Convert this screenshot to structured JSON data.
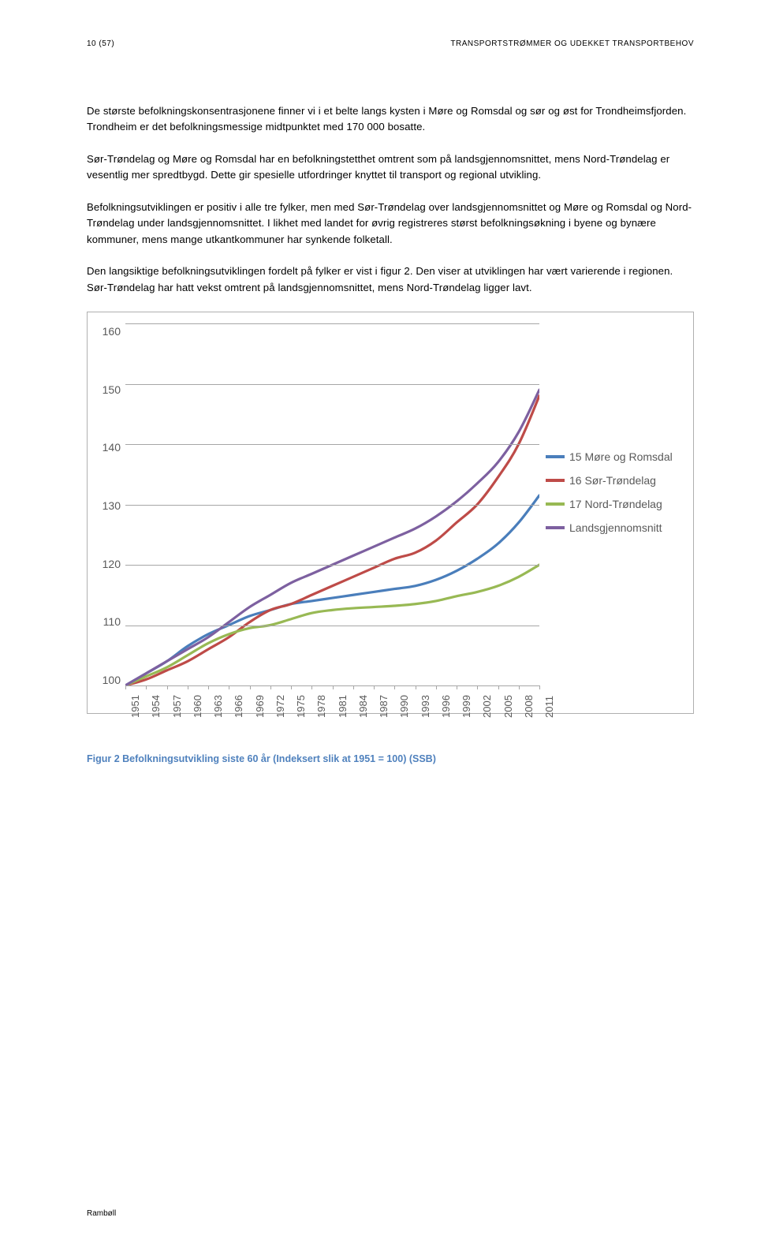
{
  "header": {
    "page_num": "10 (57)",
    "doc_title": "TRANSPORTSTRØMMER OG UDEKKET TRANSPORTBEHOV"
  },
  "paragraphs": {
    "p1": "De største befolkningskonsentrasjonene finner vi i et belte langs kysten i Møre og Romsdal og sør og øst for Trondheimsfjorden. Trondheim er det befolkningsmessige midtpunktet med 170 000 bosatte.",
    "p2": "Sør-Trøndelag og Møre og Romsdal har en befolkningstetthet omtrent som på landsgjennomsnittet, mens Nord-Trøndelag er vesentlig mer spredtbygd. Dette gir spesielle utfordringer knyttet til transport og regional utvikling.",
    "p3": "Befolkningsutviklingen er positiv i alle tre fylker, men med Sør-Trøndelag over landsgjennomsnittet og Møre og Romsdal og Nord-Trøndelag under landsgjennomsnittet. I likhet med landet for øvrig registreres størst befolkningsøkning i byene og bynære kommuner, mens mange utkantkommuner har synkende folketall.",
    "p4": "Den langsiktige befolkningsutviklingen fordelt på fylker er vist i figur 2. Den viser at utviklingen har vært varierende i regionen. Sør-Trøndelag har hatt vekst omtrent på landsgjennomsnittet, mens Nord-Trøndelag ligger lavt."
  },
  "chart": {
    "type": "line",
    "ylim": [
      100,
      160
    ],
    "ytick_step": 10,
    "y_ticks": [
      "160",
      "150",
      "140",
      "130",
      "120",
      "110",
      "100"
    ],
    "x_ticks": [
      "1951",
      "1954",
      "1957",
      "1960",
      "1963",
      "1966",
      "1969",
      "1972",
      "1975",
      "1978",
      "1981",
      "1984",
      "1987",
      "1990",
      "1993",
      "1996",
      "1999",
      "2002",
      "2005",
      "2008",
      "2011"
    ],
    "grid_color": "#a6a6a6",
    "background_color": "#ffffff",
    "tick_label_color": "#595959",
    "tick_fontsize": 14,
    "line_width": 3.2,
    "series": [
      {
        "name": "15 Møre og Romsdal",
        "color": "#4a7ebb",
        "values": [
          100,
          102,
          104,
          106.5,
          108.5,
          110,
          111.5,
          112.5,
          113.5,
          114,
          114.5,
          115,
          115.5,
          116,
          116.5,
          117.5,
          119,
          121,
          123.5,
          127,
          131.5
        ]
      },
      {
        "name": "16 Sør-Trøndelag",
        "color": "#be4b48",
        "values": [
          100,
          101,
          102.5,
          104,
          106,
          108,
          110.5,
          112.5,
          113.5,
          115,
          116.5,
          118,
          119.5,
          121,
          122,
          124,
          127,
          130,
          134.5,
          140,
          148
        ]
      },
      {
        "name": "17 Nord-Trøndelag",
        "color": "#98b954",
        "values": [
          100,
          101.5,
          103,
          105,
          107,
          108.5,
          109.5,
          110,
          111,
          112,
          112.5,
          112.8,
          113,
          113.2,
          113.5,
          114,
          114.8,
          115.5,
          116.5,
          118,
          120
        ]
      },
      {
        "name": "Landsgjennomsnitt",
        "color": "#7d60a0",
        "values": [
          100,
          102,
          104,
          106,
          108,
          110.5,
          113,
          115,
          117,
          118.5,
          120,
          121.5,
          123,
          124.5,
          126,
          128,
          130.5,
          133.5,
          137,
          142,
          149
        ]
      }
    ]
  },
  "caption": "Figur 2 Befolkningsutvikling siste 60 år (Indeksert slik at 1951 = 100)  (SSB)",
  "footer": "Rambøll"
}
